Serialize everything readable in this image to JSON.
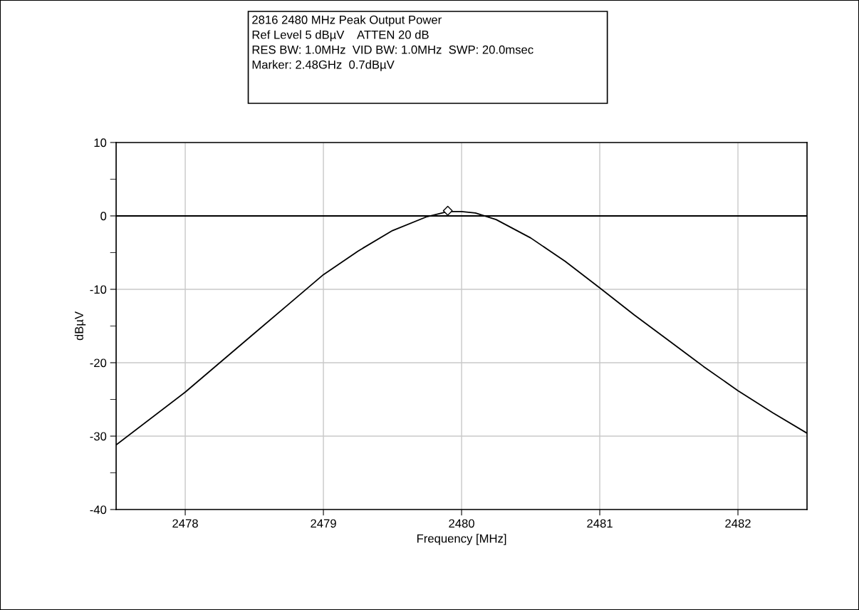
{
  "chart_data": {
    "type": "line",
    "title": "2816 2480 MHz Peak Output Power",
    "annotations": [
      "Ref Level 5 dBµV    ATTEN 20 dB",
      "RES BW: 1.0MHz  VID BW: 1.0MHz  SWP: 20.0msec",
      "Marker: 2.48GHz  0.7dBµV"
    ],
    "xlabel": "Frequency [MHz]",
    "ylabel": "dBµV",
    "xlim": [
      2477.5,
      2482.5
    ],
    "xticks": [
      2478,
      2479,
      2480,
      2481,
      2482
    ],
    "ylim": [
      -40,
      10
    ],
    "yticks": [
      -40,
      {
        "value": -35,
        "label": null
      },
      -30,
      {
        "value": -25,
        "label": null
      },
      -20,
      {
        "value": -15,
        "label": null
      },
      -10,
      {
        "value": -5,
        "label": null
      },
      0,
      {
        "value": 5,
        "label": null
      },
      10
    ],
    "grid": true,
    "legend": false,
    "ref_lines": [
      {
        "axis": "y",
        "value": 0,
        "color": "#000000"
      }
    ],
    "series": [
      {
        "color": "#000000",
        "marker": "none",
        "x": [
          2477.5,
          2478,
          2478.25,
          2478.5,
          2478.75,
          2479,
          2479.25,
          2479.5,
          2479.75,
          2479.9,
          2480,
          2480.1,
          2480.25,
          2480.5,
          2480.75,
          2481,
          2481.25,
          2481.5,
          2481.75,
          2482,
          2482.25,
          2482.5
        ],
        "values": [
          -31.2,
          -24,
          -20,
          -16,
          -12,
          -8,
          -4.8,
          -2,
          -0.1,
          0.6,
          0.6,
          0.4,
          -0.5,
          -3,
          -6.2,
          -9.8,
          -13.5,
          -17,
          -20.5,
          -23.8,
          -26.8,
          -29.6
        ]
      },
      {
        "type": "scatter",
        "color": "#000000",
        "marker": "diamond",
        "x": [
          2479.9
        ],
        "values": [
          0.7
        ]
      }
    ]
  }
}
